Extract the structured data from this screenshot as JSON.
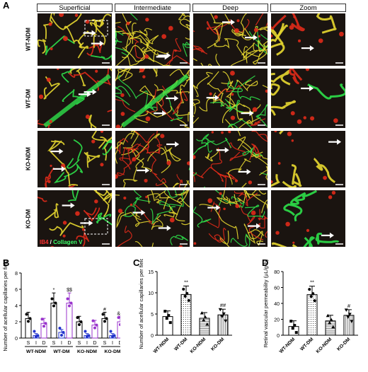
{
  "panels": {
    "A": "A",
    "B": "B",
    "C": "C",
    "D": "D"
  },
  "panel_a": {
    "columns": [
      "Superficial",
      "Intermediate",
      "Deep",
      "Zoom"
    ],
    "rows": [
      "WT-NDM",
      "WT-DM",
      "KO-NDM",
      "KO-DM"
    ],
    "legend": {
      "stain1": "IB4",
      "sep": " / ",
      "stain2": "Collagen V"
    },
    "colors": {
      "bg": "#1a1410",
      "red": "#e02a1a",
      "green": "#2ee04a",
      "yellow": "#e8d830"
    }
  },
  "chart_data": [
    {
      "id": "B",
      "type": "bar",
      "ylabel": "Number of acellular capillaries per field",
      "ylim": [
        0,
        8
      ],
      "yticks": [
        0,
        2,
        4,
        6,
        8
      ],
      "groups": [
        "WT-NDM",
        "WT-DM",
        "KO-NDM",
        "KO-DM"
      ],
      "sublabels": [
        "S",
        "I",
        "D"
      ],
      "values": [
        [
          2.4,
          0.3,
          1.8
        ],
        [
          4.3,
          0.7,
          4.3
        ],
        [
          2.0,
          0.3,
          1.6
        ],
        [
          2.4,
          0.3,
          2.0
        ]
      ],
      "annotations": [
        "",
        "",
        "",
        "*",
        "",
        "$$",
        "",
        "",
        "",
        "#",
        "",
        "&&"
      ],
      "colors": {
        "S": "#000000",
        "I": "#2233cc",
        "D": "#9933cc"
      }
    },
    {
      "id": "C",
      "type": "bar",
      "ylabel": "Number of acellular capillaries per field",
      "ylim": [
        0,
        15
      ],
      "yticks": [
        0,
        5,
        10,
        15
      ],
      "categories": [
        "WT-NDM",
        "WT-DM",
        "KO-NDM",
        "KO-DM"
      ],
      "values": [
        4.4,
        9.6,
        4.0,
        4.8
      ],
      "annotations": [
        "",
        "**",
        "",
        "##"
      ]
    },
    {
      "id": "D",
      "type": "bar",
      "ylabel": "Retinal vascular permeability (μL/g*h)",
      "ylim": [
        0,
        80
      ],
      "yticks": [
        0,
        20,
        40,
        60,
        80
      ],
      "categories": [
        "WT-NDM",
        "WT-DM",
        "KO-NDM",
        "KO-DM"
      ],
      "values": [
        11,
        51,
        18,
        25
      ],
      "annotations": [
        "",
        "**",
        "",
        "#"
      ]
    }
  ]
}
